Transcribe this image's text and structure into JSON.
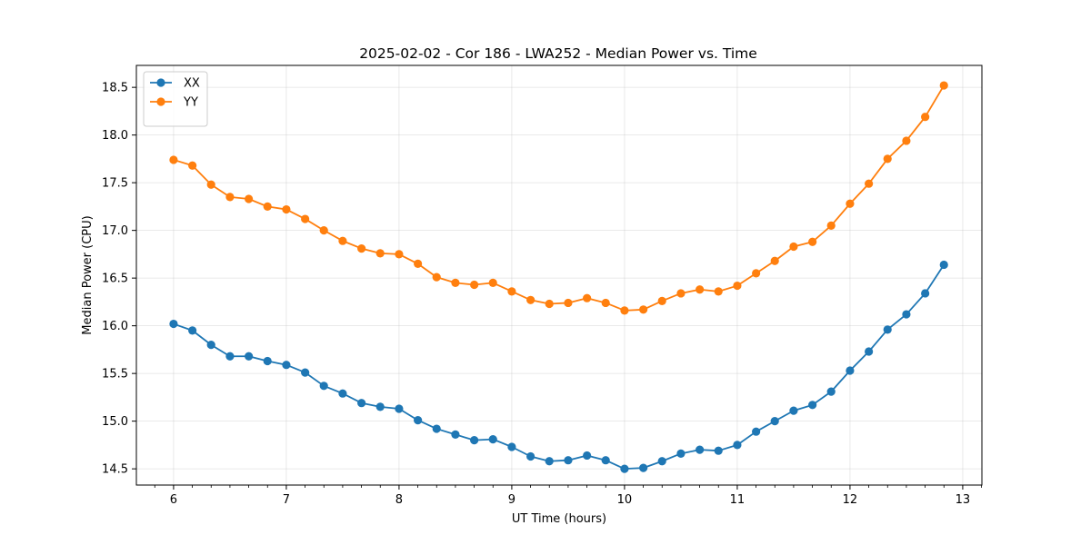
{
  "chart_data": {
    "type": "line",
    "title": "2025-02-02 - Cor 186 - LWA252 - Median Power vs. Time",
    "xlabel": "UT Time (hours)",
    "ylabel": "Median Power (CPU)",
    "xlim": [
      5.67,
      13.17
    ],
    "ylim": [
      14.33,
      18.73
    ],
    "xticks": [
      6,
      7,
      8,
      9,
      10,
      11,
      12,
      13
    ],
    "yticks": [
      14.5,
      15.0,
      15.5,
      16.0,
      16.5,
      17.0,
      17.5,
      18.0,
      18.5
    ],
    "grid": true,
    "legend_position": "upper-left",
    "x": [
      6.0,
      6.167,
      6.333,
      6.5,
      6.667,
      6.833,
      7.0,
      7.167,
      7.333,
      7.5,
      7.667,
      7.833,
      8.0,
      8.167,
      8.333,
      8.5,
      8.667,
      8.833,
      9.0,
      9.167,
      9.333,
      9.5,
      9.667,
      9.833,
      10.0,
      10.167,
      10.333,
      10.5,
      10.667,
      10.833,
      11.0,
      11.167,
      11.333,
      11.5,
      11.667,
      11.833,
      12.0,
      12.167,
      12.333,
      12.5,
      12.667,
      12.833
    ],
    "series": [
      {
        "name": "XX",
        "color": "#1f77b4",
        "values": [
          16.02,
          15.95,
          15.8,
          15.68,
          15.68,
          15.63,
          15.59,
          15.51,
          15.37,
          15.29,
          15.19,
          15.15,
          15.13,
          15.01,
          14.92,
          14.86,
          14.8,
          14.81,
          14.73,
          14.63,
          14.58,
          14.59,
          14.64,
          14.59,
          14.5,
          14.51,
          14.58,
          14.66,
          14.7,
          14.69,
          14.75,
          14.89,
          15.0,
          15.11,
          15.17,
          15.31,
          15.53,
          15.73,
          15.96,
          16.12,
          16.34,
          16.64
        ]
      },
      {
        "name": "YY",
        "color": "#ff7f0e",
        "values": [
          17.74,
          17.68,
          17.48,
          17.35,
          17.33,
          17.25,
          17.22,
          17.12,
          17.0,
          16.89,
          16.81,
          16.76,
          16.75,
          16.65,
          16.51,
          16.45,
          16.43,
          16.45,
          16.36,
          16.27,
          16.23,
          16.24,
          16.29,
          16.24,
          16.16,
          16.17,
          16.26,
          16.34,
          16.38,
          16.36,
          16.42,
          16.55,
          16.68,
          16.83,
          16.88,
          17.05,
          17.28,
          17.49,
          17.75,
          17.94,
          18.19,
          18.52
        ]
      }
    ]
  }
}
